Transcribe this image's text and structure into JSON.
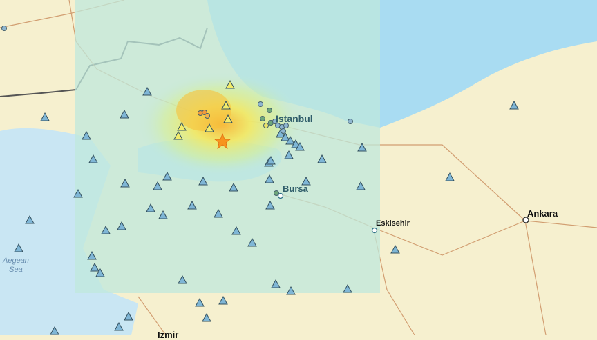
{
  "map": {
    "labels": {
      "istanbul": "Istanbul",
      "bursa": "Bursa",
      "eskisehir": "Eskisehir",
      "ankara": "Ankara",
      "aegean_sea_1": "Aegean",
      "aegean_sea_2": "Sea",
      "izmir": "Izmir"
    },
    "colors": {
      "land": "#f6f0cf",
      "sea": "#c9e6f3",
      "black_sea": "#a9dcf2",
      "shakemap_overlay": "#bfe8dc",
      "intensity_high": "#f7b733",
      "intensity_mid": "#f3ec6a",
      "epicenter": "#f7941d",
      "station": "#7fb6d6",
      "roads": "#c98a5a"
    },
    "icons": {
      "epicenter": "star-icon",
      "seismic_station": "triangle-icon",
      "dyfi_report": "circle-icon",
      "city": "circle-icon"
    }
  }
}
